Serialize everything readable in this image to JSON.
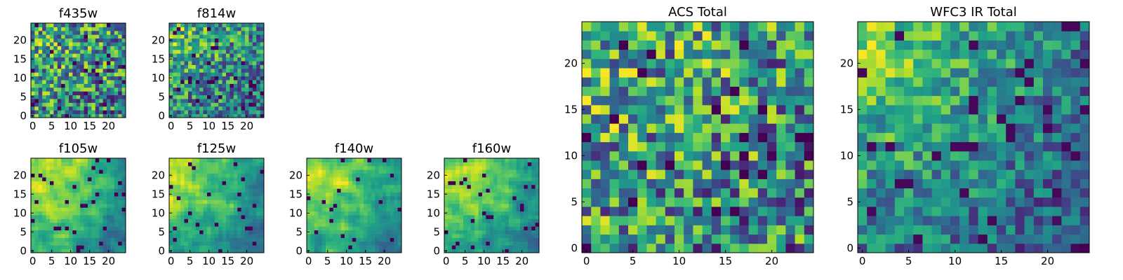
{
  "chart_data": [
    {
      "type": "heatmap",
      "title": "f435w",
      "n": 25,
      "x_ticks": [
        0,
        5,
        10,
        15,
        20
      ],
      "y_ticks": [
        0,
        5,
        10,
        15,
        20
      ],
      "colormap": "viridis",
      "pattern": "noise",
      "peak": [
        1,
        21
      ]
    },
    {
      "type": "heatmap",
      "title": "f814w",
      "n": 25,
      "x_ticks": [
        0,
        5,
        10,
        15,
        20
      ],
      "y_ticks": [
        0,
        5,
        10,
        15,
        20
      ],
      "colormap": "viridis",
      "pattern": "noise-gradient",
      "peak": [
        1,
        23
      ]
    },
    {
      "type": "heatmap",
      "title": "f105w",
      "n": 25,
      "x_ticks": [
        0,
        5,
        10,
        15,
        20
      ],
      "y_ticks": [
        0,
        5,
        10,
        15,
        20
      ],
      "colormap": "viridis",
      "pattern": "smooth",
      "peak": [
        3,
        18
      ]
    },
    {
      "type": "heatmap",
      "title": "f125w",
      "n": 25,
      "x_ticks": [
        0,
        5,
        10,
        15,
        20
      ],
      "y_ticks": [
        0,
        5,
        10,
        15,
        20
      ],
      "colormap": "viridis",
      "pattern": "smooth",
      "peak": [
        1,
        21
      ]
    },
    {
      "type": "heatmap",
      "title": "f140w",
      "n": 25,
      "x_ticks": [
        0,
        5,
        10,
        15,
        20
      ],
      "y_ticks": [
        0,
        5,
        10,
        15,
        20
      ],
      "colormap": "viridis",
      "pattern": "smooth",
      "peak": [
        3,
        18
      ]
    },
    {
      "type": "heatmap",
      "title": "f160w",
      "n": 25,
      "x_ticks": [
        0,
        5,
        10,
        15,
        20
      ],
      "y_ticks": [
        0,
        5,
        10,
        15,
        20
      ],
      "colormap": "viridis",
      "pattern": "smooth",
      "peak": [
        3,
        19
      ]
    },
    {
      "type": "heatmap",
      "title": "ACS Total",
      "n": 25,
      "x_ticks": [
        0,
        5,
        10,
        15,
        20
      ],
      "y_ticks": [
        0,
        5,
        10,
        15,
        20
      ],
      "colormap": "viridis",
      "pattern": "noise",
      "peak": [
        2,
        20
      ]
    },
    {
      "type": "heatmap",
      "title": "WFC3 IR Total",
      "n": 25,
      "x_ticks": [
        0,
        5,
        10,
        15,
        20
      ],
      "y_ticks": [
        0,
        5,
        10,
        15,
        20
      ],
      "colormap": "viridis",
      "pattern": "gradient",
      "peak": [
        0,
        23
      ]
    }
  ]
}
